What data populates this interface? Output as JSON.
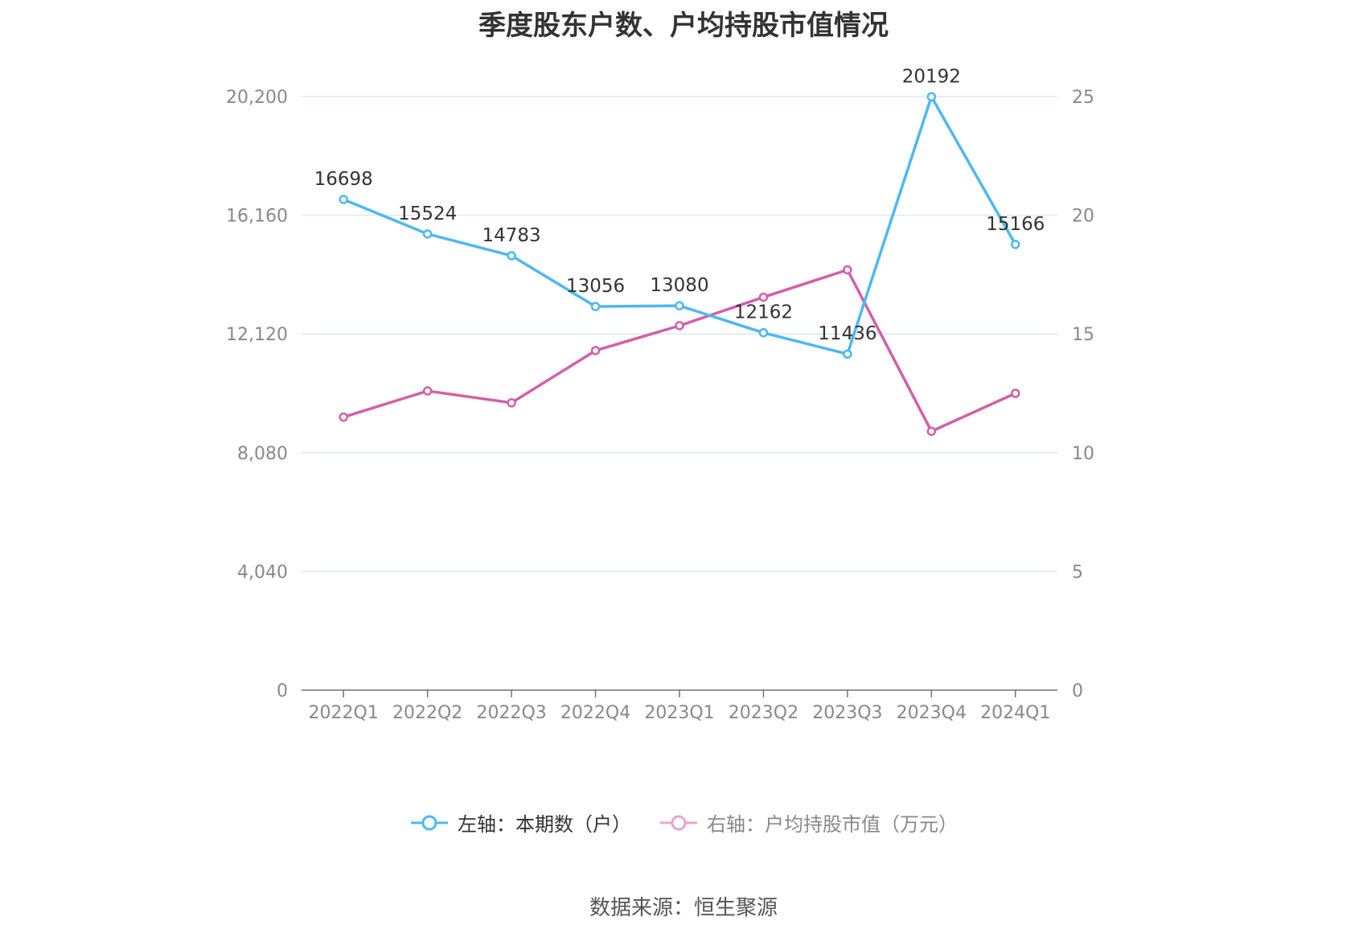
{
  "chart_data": {
    "type": "line",
    "title": "季度股东户数、户均持股市值情况",
    "categories": [
      "2022Q1",
      "2022Q2",
      "2022Q3",
      "2022Q4",
      "2023Q1",
      "2023Q2",
      "2023Q3",
      "2023Q4",
      "2024Q1"
    ],
    "left_axis": {
      "ticks": [
        "0",
        "4,040",
        "8,080",
        "12,120",
        "16,160",
        "20,200"
      ],
      "range": [
        0,
        20200
      ]
    },
    "right_axis": {
      "ticks": [
        "0",
        "5",
        "10",
        "15",
        "20",
        "25"
      ],
      "range": [
        0,
        25
      ]
    },
    "series": [
      {
        "name": "左轴：本期数（户）",
        "axis": "left",
        "color": "#4db8f0",
        "values": [
          16698,
          15524,
          14783,
          13056,
          13080,
          12162,
          11436,
          20192,
          15166
        ],
        "labels": [
          "16698",
          "15524",
          "14783",
          "13056",
          "13080",
          "12162",
          "11436",
          "20192",
          "15166"
        ]
      },
      {
        "name": "右轴：户均持股市值（万元）",
        "axis": "right",
        "color": "#d35fa8",
        "values": [
          11.5,
          12.6,
          12.1,
          14.3,
          15.35,
          16.55,
          17.7,
          10.9,
          12.5
        ]
      }
    ],
    "grid": true,
    "legend_position": "bottom"
  },
  "source": "数据来源：恒生聚源",
  "legend_off_color": "#e8a5cf"
}
